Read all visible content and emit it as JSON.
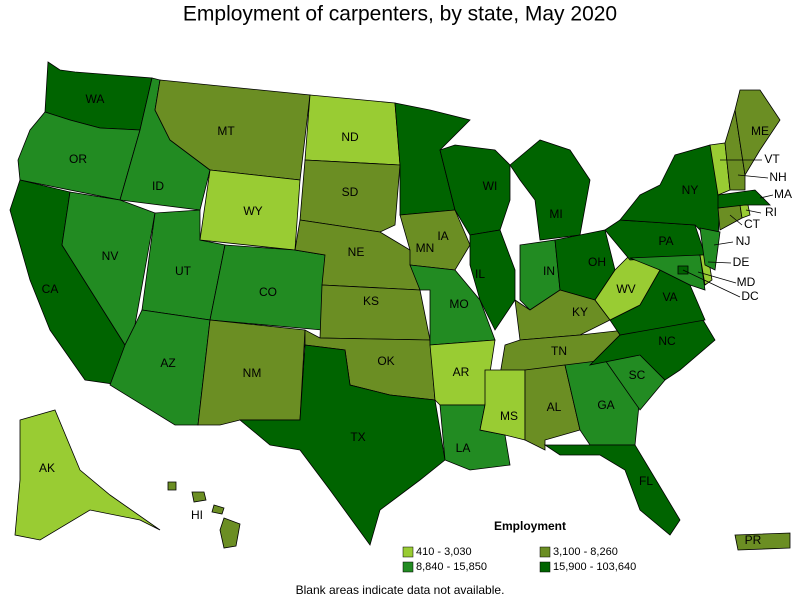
{
  "title": "Employment of carpenters, by state, May 2020",
  "map": {
    "states": [
      {
        "abbr": "WA",
        "class": 3
      },
      {
        "abbr": "OR",
        "class": 2
      },
      {
        "abbr": "CA",
        "class": 3
      },
      {
        "abbr": "ID",
        "class": 2
      },
      {
        "abbr": "NV",
        "class": 2
      },
      {
        "abbr": "UT",
        "class": 2
      },
      {
        "abbr": "AZ",
        "class": 2
      },
      {
        "abbr": "MT",
        "class": 1
      },
      {
        "abbr": "WY",
        "class": 0
      },
      {
        "abbr": "CO",
        "class": 2
      },
      {
        "abbr": "NM",
        "class": 1
      },
      {
        "abbr": "ND",
        "class": 0
      },
      {
        "abbr": "SD",
        "class": 1
      },
      {
        "abbr": "NE",
        "class": 1
      },
      {
        "abbr": "KS",
        "class": 1
      },
      {
        "abbr": "OK",
        "class": 1
      },
      {
        "abbr": "TX",
        "class": 3
      },
      {
        "abbr": "MN",
        "class": 3
      },
      {
        "abbr": "IA",
        "class": 1
      },
      {
        "abbr": "MO",
        "class": 2
      },
      {
        "abbr": "AR",
        "class": 0
      },
      {
        "abbr": "LA",
        "class": 2
      },
      {
        "abbr": "WI",
        "class": 3
      },
      {
        "abbr": "IL",
        "class": 3
      },
      {
        "abbr": "MI",
        "class": 3
      },
      {
        "abbr": "IN",
        "class": 2
      },
      {
        "abbr": "OH",
        "class": 3
      },
      {
        "abbr": "KY",
        "class": 1
      },
      {
        "abbr": "TN",
        "class": 1
      },
      {
        "abbr": "MS",
        "class": 0
      },
      {
        "abbr": "AL",
        "class": 1
      },
      {
        "abbr": "GA",
        "class": 2
      },
      {
        "abbr": "FL",
        "class": 3
      },
      {
        "abbr": "SC",
        "class": 2
      },
      {
        "abbr": "NC",
        "class": 3
      },
      {
        "abbr": "VA",
        "class": 3
      },
      {
        "abbr": "WV",
        "class": 0
      },
      {
        "abbr": "PA",
        "class": 3
      },
      {
        "abbr": "NY",
        "class": 3
      },
      {
        "abbr": "MD",
        "class": 2
      },
      {
        "abbr": "DE",
        "class": 0
      },
      {
        "abbr": "NJ",
        "class": 2
      },
      {
        "abbr": "CT",
        "class": 1
      },
      {
        "abbr": "RI",
        "class": 0
      },
      {
        "abbr": "MA",
        "class": 3
      },
      {
        "abbr": "VT",
        "class": 0
      },
      {
        "abbr": "NH",
        "class": 1
      },
      {
        "abbr": "ME",
        "class": 1
      },
      {
        "abbr": "DC",
        "class": 3
      },
      {
        "abbr": "AK",
        "class": 0
      },
      {
        "abbr": "HI",
        "class": 1
      },
      {
        "abbr": "PR",
        "class": 1
      }
    ]
  },
  "legend": {
    "title": "Employment",
    "items": [
      {
        "label": "410 - 3,030",
        "color": "#99cc33"
      },
      {
        "label": "3,100 - 8,260",
        "color": "#6b8e23"
      },
      {
        "label": "8,840 - 15,850",
        "color": "#228b22"
      },
      {
        "label": "15,900 - 103,640",
        "color": "#006400"
      }
    ]
  },
  "footnote": "Blank areas indicate data not available."
}
